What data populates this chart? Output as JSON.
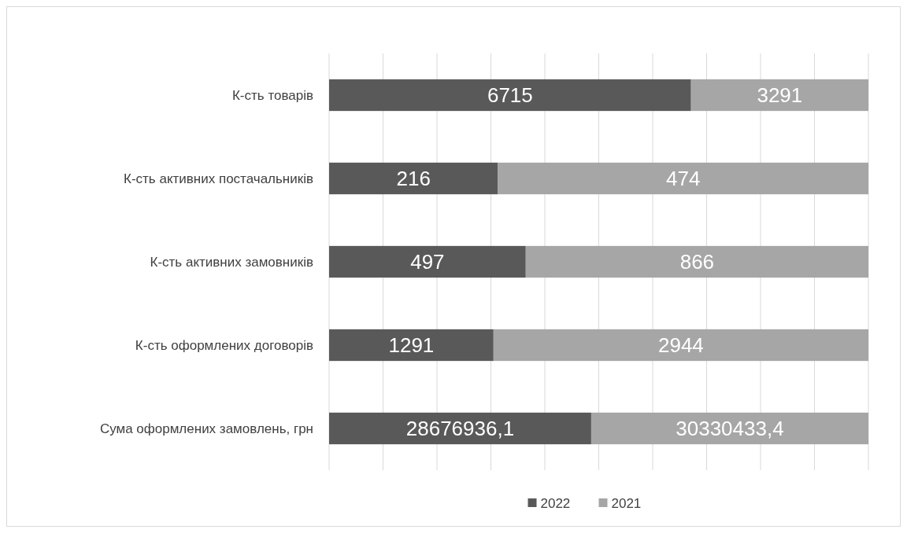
{
  "chart_data": [
    {
      "type": "bar",
      "orientation": "horizontal",
      "stacked": true,
      "grid": true,
      "categories": [
        "К-сть товарів"
      ],
      "series": [
        {
          "color": "#595959",
          "values": [
            6715
          ],
          "value_labels": [
            "6715"
          ]
        },
        {
          "color": "#a6a6a6",
          "values": [
            3291
          ],
          "value_labels": [
            "3291"
          ]
        }
      ]
    },
    {
      "type": "bar",
      "orientation": "horizontal",
      "stacked": true,
      "grid": true,
      "categories": [
        "К-сть активних постачальників"
      ],
      "series": [
        {
          "color": "#595959",
          "values": [
            216
          ],
          "value_labels": [
            "216"
          ]
        },
        {
          "color": "#a6a6a6",
          "values": [
            474
          ],
          "value_labels": [
            "474"
          ]
        }
      ]
    },
    {
      "type": "bar",
      "orientation": "horizontal",
      "stacked": true,
      "grid": true,
      "categories": [
        "К-сть активних замовників"
      ],
      "series": [
        {
          "color": "#595959",
          "values": [
            497
          ],
          "value_labels": [
            "497"
          ]
        },
        {
          "color": "#a6a6a6",
          "values": [
            866
          ],
          "value_labels": [
            "866"
          ]
        }
      ]
    },
    {
      "type": "bar",
      "orientation": "horizontal",
      "stacked": true,
      "grid": true,
      "categories": [
        "К-сть оформлених договорів"
      ],
      "series": [
        {
          "color": "#595959",
          "values": [
            1291
          ],
          "value_labels": [
            "1291"
          ]
        },
        {
          "color": "#a6a6a6",
          "values": [
            2944
          ],
          "value_labels": [
            "2944"
          ]
        }
      ]
    },
    {
      "type": "bar",
      "orientation": "horizontal",
      "stacked": true,
      "grid": true,
      "legend": "bottom",
      "categories": [
        "Сума оформлених замовлень, грн"
      ],
      "series": [
        {
          "name": "2022",
          "color": "#595959",
          "values": [
            28676936.1
          ],
          "value_labels": [
            "28676936,1"
          ]
        },
        {
          "name": "2021",
          "color": "#a6a6a6",
          "values": [
            30330433.4
          ],
          "value_labels": [
            "30330433,4"
          ]
        }
      ]
    }
  ]
}
